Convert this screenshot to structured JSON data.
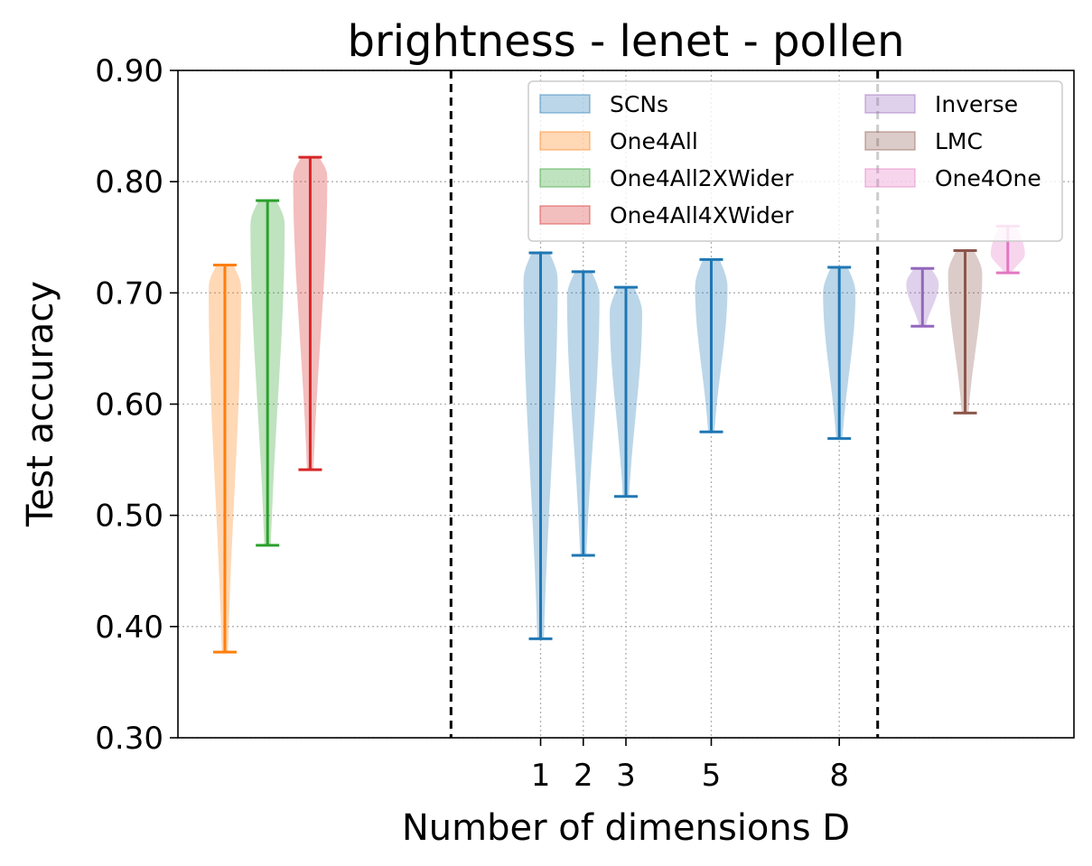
{
  "chart_data": {
    "type": "violin",
    "title": "brightness - lenet - pollen",
    "xlabel": "Number of dimensions D",
    "ylabel": "Test accuracy",
    "ylim": [
      0.3,
      0.9
    ],
    "yticks": [
      "0.30",
      "0.40",
      "0.50",
      "0.60",
      "0.70",
      "0.80",
      "0.90"
    ],
    "xticks": [
      "1",
      "2",
      "3",
      "5",
      "8"
    ],
    "grid": true,
    "legend_placement": "top-right",
    "separators": [
      -1.1,
      8.9
    ],
    "series": [
      {
        "name": "SCNs",
        "color": "#1f77b4"
      },
      {
        "name": "One4All",
        "color": "#ff7f0e"
      },
      {
        "name": "One4All2XWider",
        "color": "#2ca02c"
      },
      {
        "name": "One4All4XWider",
        "color": "#d62728"
      },
      {
        "name": "Inverse",
        "color": "#9467bd"
      },
      {
        "name": "LMC",
        "color": "#8c564b"
      },
      {
        "name": "One4One",
        "color": "#e377c2"
      }
    ],
    "violins": [
      {
        "series": "One4All",
        "x": -6.4,
        "min": 0.377,
        "max": 0.725,
        "mode": 0.705,
        "width": 0.95
      },
      {
        "series": "One4All2XWider",
        "x": -5.4,
        "min": 0.473,
        "max": 0.783,
        "mode": 0.762,
        "width": 1.0
      },
      {
        "series": "One4All4XWider",
        "x": -4.4,
        "min": 0.541,
        "max": 0.822,
        "mode": 0.805,
        "width": 1.0
      },
      {
        "series": "SCNs",
        "x": 1,
        "min": 0.389,
        "max": 0.736,
        "mode": 0.712,
        "width": 1.0
      },
      {
        "series": "SCNs",
        "x": 2,
        "min": 0.464,
        "max": 0.719,
        "mode": 0.697,
        "width": 0.95
      },
      {
        "series": "SCNs",
        "x": 3,
        "min": 0.517,
        "max": 0.705,
        "mode": 0.682,
        "width": 0.95
      },
      {
        "series": "SCNs",
        "x": 5,
        "min": 0.575,
        "max": 0.73,
        "mode": 0.705,
        "width": 0.95
      },
      {
        "series": "SCNs",
        "x": 8,
        "min": 0.569,
        "max": 0.723,
        "mode": 0.7,
        "width": 0.95
      },
      {
        "series": "Inverse",
        "x": 9.95,
        "min": 0.67,
        "max": 0.722,
        "mode": 0.708,
        "width": 0.95
      },
      {
        "series": "LMC",
        "x": 10.95,
        "min": 0.592,
        "max": 0.738,
        "mode": 0.717,
        "width": 1.0
      },
      {
        "series": "One4One",
        "x": 11.95,
        "min": 0.718,
        "max": 0.76,
        "mode": 0.735,
        "width": 1.0
      }
    ]
  }
}
